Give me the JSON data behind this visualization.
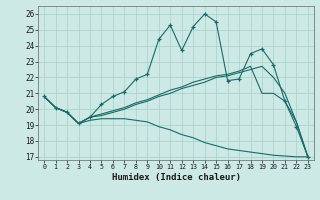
{
  "xlabel": "Humidex (Indice chaleur)",
  "background_color": "#cce9e5",
  "grid_color": "#aacfcc",
  "line_color": "#1a6b65",
  "xlim": [
    -0.5,
    23.5
  ],
  "ylim": [
    16.8,
    26.5
  ],
  "xticks": [
    0,
    1,
    2,
    3,
    4,
    5,
    6,
    7,
    8,
    9,
    10,
    11,
    12,
    13,
    14,
    15,
    16,
    17,
    18,
    19,
    20,
    21,
    22,
    23
  ],
  "yticks": [
    17,
    18,
    19,
    20,
    21,
    22,
    23,
    24,
    25,
    26
  ],
  "line1_x": [
    0,
    1,
    2,
    3,
    4,
    5,
    6,
    7,
    8,
    9,
    10,
    11,
    12,
    13,
    14,
    15,
    16,
    17,
    18,
    19,
    20,
    21,
    22,
    23
  ],
  "line1_y": [
    20.8,
    20.1,
    19.8,
    19.1,
    19.5,
    20.3,
    20.8,
    21.1,
    21.9,
    22.2,
    24.4,
    25.3,
    23.7,
    25.2,
    26.0,
    25.5,
    21.8,
    21.9,
    23.5,
    23.8,
    22.8,
    20.5,
    18.9,
    17.0
  ],
  "line2_x": [
    0,
    1,
    2,
    3,
    4,
    5,
    6,
    7,
    8,
    9,
    10,
    11,
    12,
    13,
    14,
    15,
    16,
    17,
    18,
    19,
    20,
    21,
    22,
    23
  ],
  "line2_y": [
    20.8,
    20.1,
    19.8,
    19.1,
    19.5,
    19.6,
    19.8,
    20.0,
    20.3,
    20.5,
    20.8,
    21.0,
    21.3,
    21.5,
    21.7,
    22.0,
    22.1,
    22.3,
    22.5,
    22.7,
    22.0,
    21.0,
    19.2,
    17.0
  ],
  "line3_x": [
    0,
    1,
    2,
    3,
    4,
    5,
    6,
    7,
    8,
    9,
    10,
    11,
    12,
    13,
    14,
    15,
    16,
    17,
    18,
    19,
    20,
    21,
    22,
    23
  ],
  "line3_y": [
    20.8,
    20.1,
    19.8,
    19.1,
    19.5,
    19.7,
    19.9,
    20.1,
    20.4,
    20.6,
    20.9,
    21.2,
    21.4,
    21.7,
    21.9,
    22.1,
    22.2,
    22.4,
    22.7,
    21.0,
    21.0,
    20.5,
    19.2,
    17.0
  ],
  "line4_x": [
    0,
    1,
    2,
    3,
    4,
    5,
    6,
    7,
    8,
    9,
    10,
    11,
    12,
    13,
    14,
    15,
    16,
    17,
    18,
    19,
    20,
    21,
    22,
    23
  ],
  "line4_y": [
    20.8,
    20.1,
    19.8,
    19.1,
    19.3,
    19.4,
    19.4,
    19.4,
    19.3,
    19.2,
    18.9,
    18.7,
    18.4,
    18.2,
    17.9,
    17.7,
    17.5,
    17.4,
    17.3,
    17.2,
    17.1,
    17.05,
    17.0,
    17.0
  ]
}
